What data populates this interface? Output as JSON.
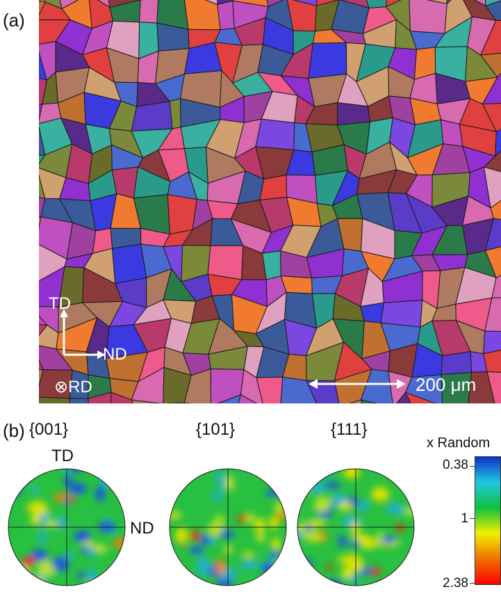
{
  "panel_a": {
    "label": "(a)",
    "axes": {
      "td": "TD",
      "nd": "ND",
      "rd": "⊗RD"
    },
    "scale_bar": {
      "label": "200 μm"
    }
  },
  "panel_b": {
    "label": "(b)",
    "pole_figures": [
      {
        "title": "{001}",
        "axis_top": "TD",
        "axis_right": "ND"
      },
      {
        "title": "{101}"
      },
      {
        "title": "{111}"
      }
    ],
    "colorbar": {
      "title": "x Random",
      "ticks": [
        "0.38",
        "1",
        "2.38"
      ],
      "colors": [
        "#1030c8",
        "#20c8e0",
        "#10c040",
        "#f0f000",
        "#f07000",
        "#ff0000"
      ]
    }
  },
  "grain_palette": [
    "#c050c0",
    "#9030d0",
    "#5a3cc8",
    "#2a9a8a",
    "#e04040",
    "#f07a30",
    "#7a8a3a",
    "#3a5a9a",
    "#d86ab0",
    "#b83a6a",
    "#6a6a2a",
    "#ee5a8a",
    "#4a6ad0",
    "#8a3a3a",
    "#b07a60",
    "#2a7a4a",
    "#7c46e0",
    "#d0a070",
    "#a040a0",
    "#3ab0a0",
    "#c07030",
    "#5a2a8a",
    "#e0a0c0",
    "#3a3ae0"
  ]
}
